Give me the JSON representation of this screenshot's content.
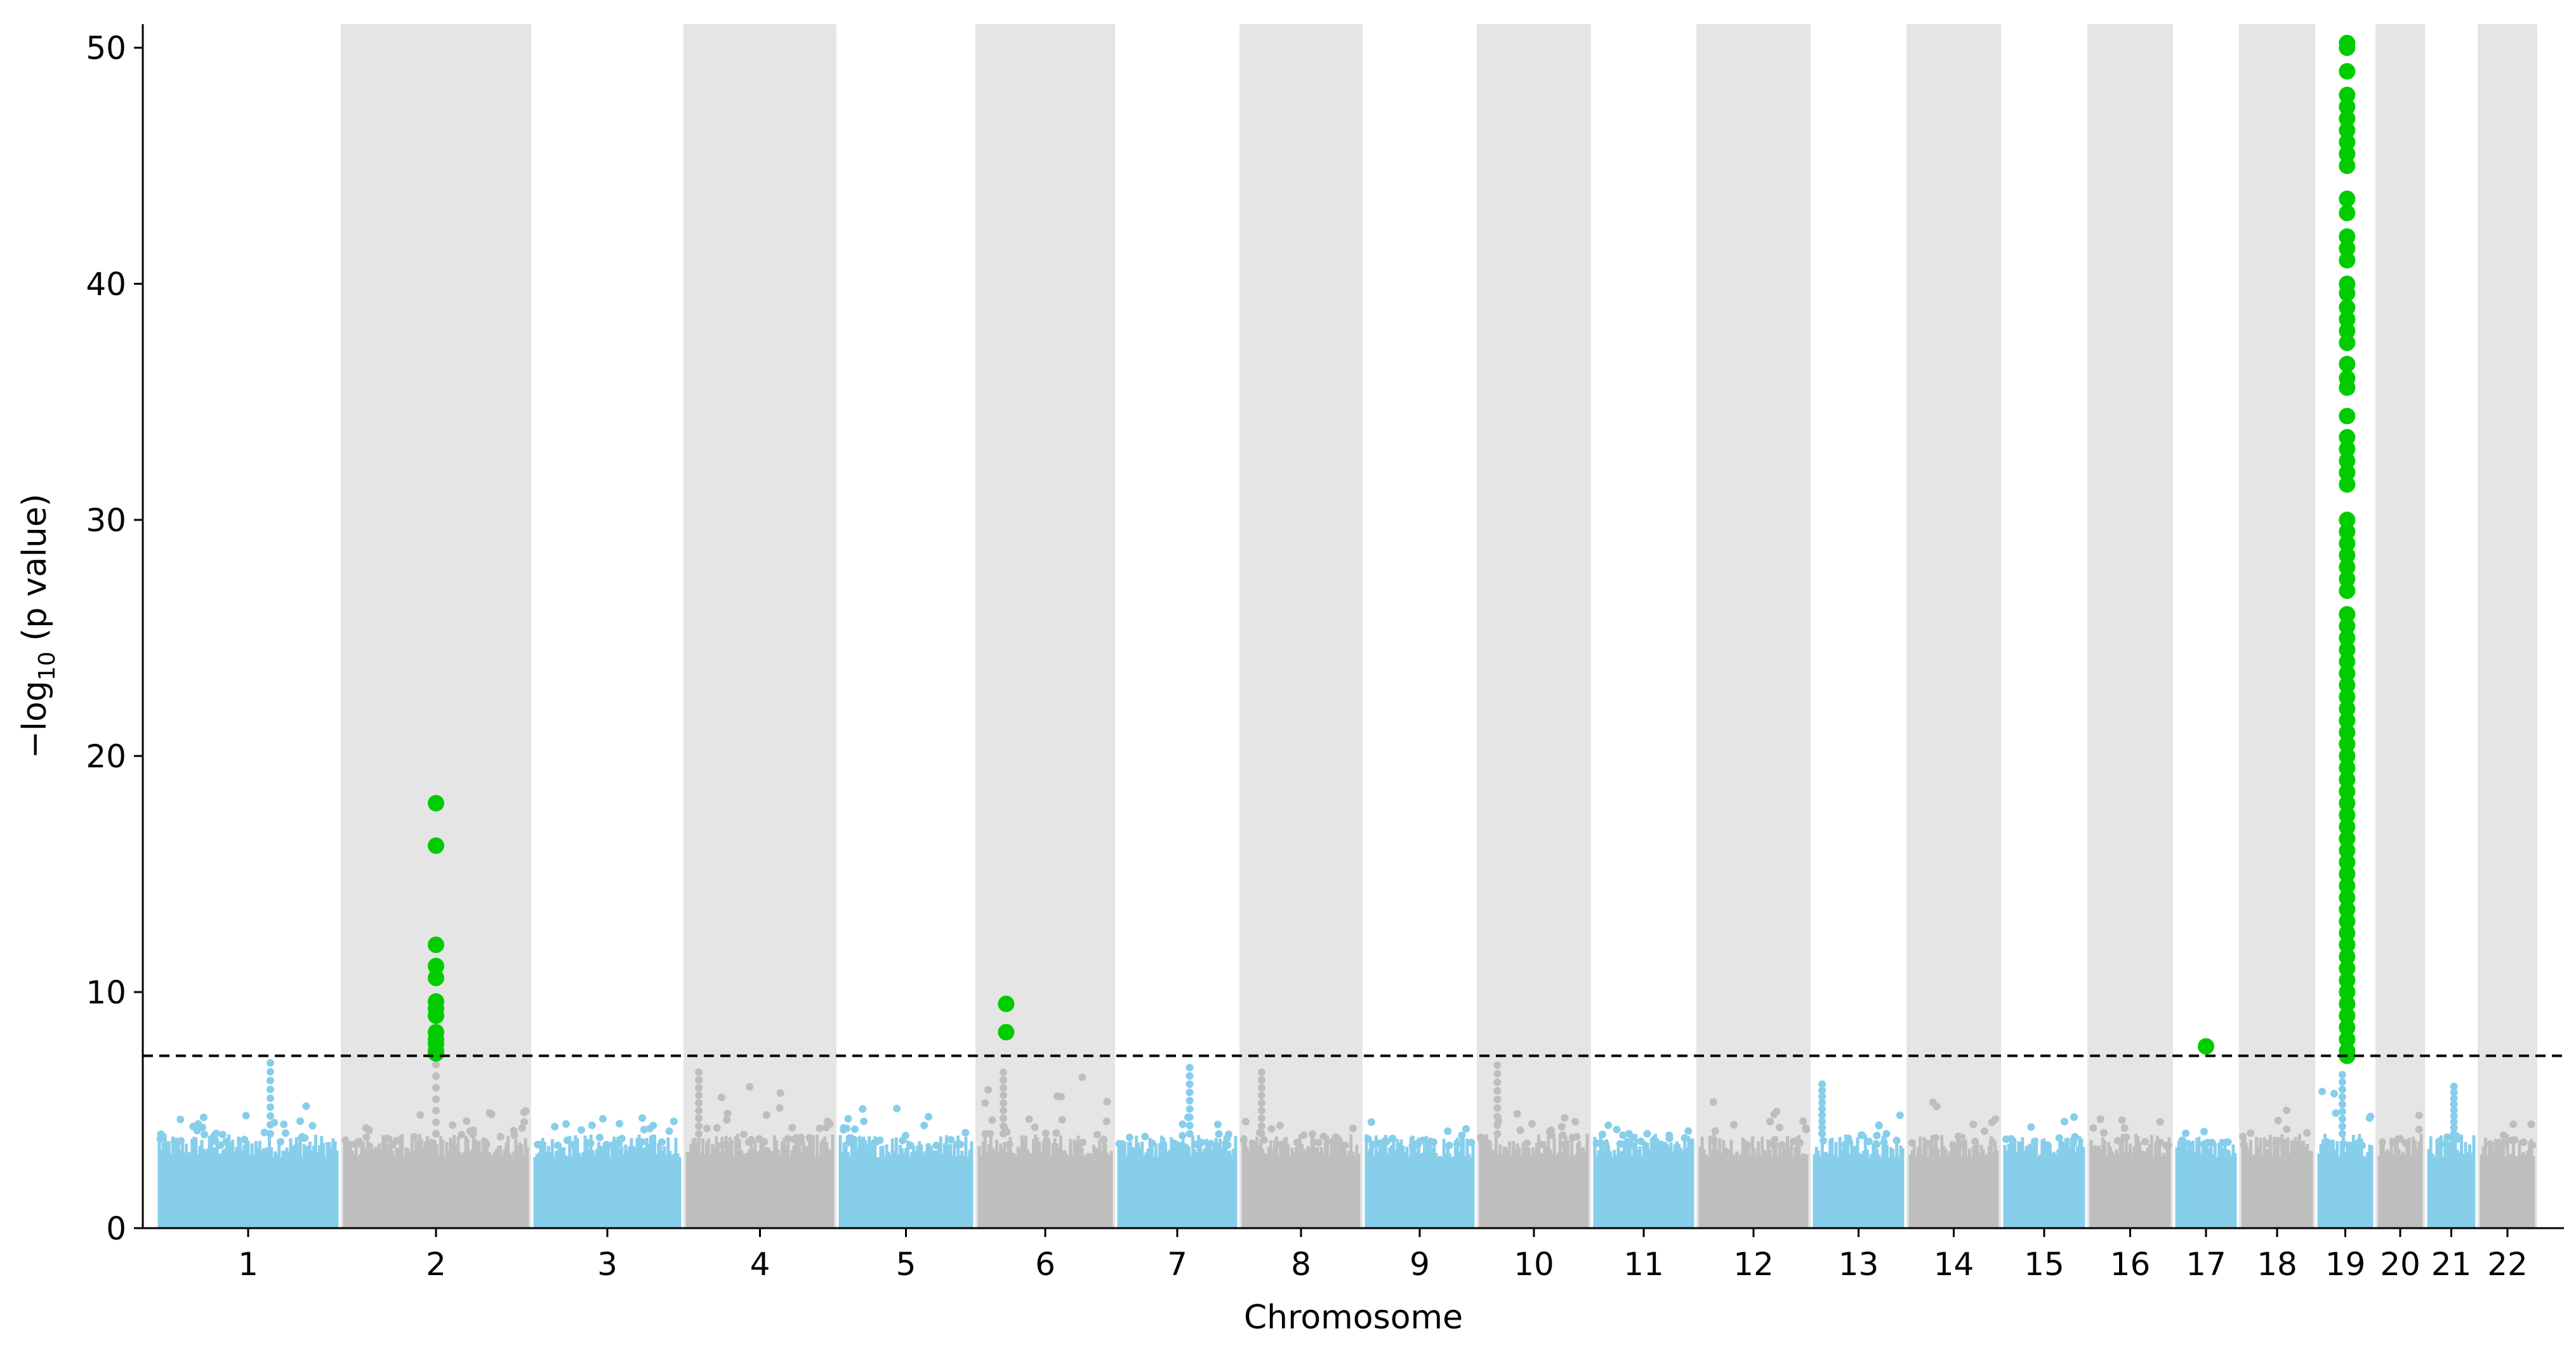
{
  "chart_data": {
    "type": "scatter",
    "subtype": "manhattan",
    "xlabel": "Chromosome",
    "ylabel_prefix": "−log",
    "ylabel_subscript": "10",
    "ylabel_suffix": " (p value)",
    "ylim": [
      0,
      51
    ],
    "yticks": [
      0,
      10,
      20,
      30,
      40,
      50
    ],
    "threshold": 7.3,
    "threshold_style": "dashed",
    "colors": {
      "odd": "#87ceeb",
      "even": "#bebebe",
      "significant": "#00cc00",
      "band": "#e5e5e5",
      "threshold": "#000000"
    },
    "chromosomes": [
      {
        "label": "1",
        "baseline_max": 5.6,
        "peaks": [
          {
            "pos": 0.62,
            "y": 7.0
          }
        ]
      },
      {
        "label": "2",
        "baseline_max": 5.8,
        "peaks": [
          {
            "pos": 0.5,
            "y": 7.9
          }
        ],
        "significant": [
          {
            "pos": 0.5,
            "values": [
              18.0,
              16.2,
              12.0,
              11.1,
              10.6,
              9.6,
              9.3,
              9.0,
              8.3,
              8.0,
              7.8,
              7.5,
              7.4
            ]
          }
        ]
      },
      {
        "label": "3",
        "baseline_max": 6.0,
        "peaks": []
      },
      {
        "label": "4",
        "baseline_max": 6.6,
        "peaks": [
          {
            "pos": 0.1,
            "y": 6.6
          }
        ]
      },
      {
        "label": "5",
        "baseline_max": 6.0,
        "peaks": []
      },
      {
        "label": "6",
        "baseline_max": 6.6,
        "peaks": [
          {
            "pos": 0.2,
            "y": 6.6
          }
        ],
        "significant": [
          {
            "pos": 0.22,
            "values": [
              9.5,
              8.3
            ]
          }
        ]
      },
      {
        "label": "7",
        "baseline_max": 5.2,
        "peaks": [
          {
            "pos": 0.6,
            "y": 6.8
          }
        ]
      },
      {
        "label": "8",
        "baseline_max": 5.3,
        "peaks": [
          {
            "pos": 0.18,
            "y": 6.6
          }
        ]
      },
      {
        "label": "9",
        "baseline_max": 4.7,
        "peaks": []
      },
      {
        "label": "10",
        "baseline_max": 5.4,
        "peaks": [
          {
            "pos": 0.18,
            "y": 6.9
          }
        ]
      },
      {
        "label": "11",
        "baseline_max": 5.4,
        "peaks": []
      },
      {
        "label": "12",
        "baseline_max": 5.8,
        "peaks": []
      },
      {
        "label": "13",
        "baseline_max": 5.1,
        "peaks": [
          {
            "pos": 0.12,
            "y": 6.1
          }
        ]
      },
      {
        "label": "14",
        "baseline_max": 5.8,
        "peaks": []
      },
      {
        "label": "15",
        "baseline_max": 5.1,
        "peaks": []
      },
      {
        "label": "16",
        "baseline_max": 5.2,
        "peaks": []
      },
      {
        "label": "17",
        "baseline_max": 5.6,
        "peaks": [],
        "significant": [
          {
            "pos": 0.5,
            "values": [
              7.7
            ]
          }
        ]
      },
      {
        "label": "18",
        "baseline_max": 5.5,
        "peaks": []
      },
      {
        "label": "19",
        "baseline_max": 6.7,
        "peaks": [
          {
            "pos": 0.45,
            "y": 6.5
          }
        ],
        "significant": [
          {
            "pos": 0.53,
            "values": [
              50.2,
              50.0,
              49.0,
              48.0,
              47.5,
              47.0,
              46.5,
              46.0,
              45.5,
              45.0,
              43.6,
              43.0,
              42.0,
              41.5,
              41.0,
              40.0,
              39.6,
              39.0,
              38.5,
              38.0,
              37.5,
              36.6,
              36.0,
              35.6,
              34.4,
              33.5,
              33.0,
              32.5,
              32.0,
              31.5,
              30.0,
              29.5,
              29.0,
              28.5,
              28.0,
              27.5,
              27.0,
              26.0,
              25.5,
              25.0,
              24.5,
              24.0,
              23.5,
              23.0,
              22.5,
              22.0,
              21.5,
              21.0,
              20.5,
              20.0,
              19.5,
              19.0,
              18.5,
              18.0,
              17.5,
              17.0,
              16.5,
              16.0,
              15.5,
              15.0,
              14.5,
              14.0,
              13.5,
              13.0,
              12.5,
              12.0,
              11.5,
              11.0,
              10.5,
              10.0,
              9.5,
              9.0,
              8.5,
              8.0,
              7.5,
              7.3
            ]
          }
        ]
      },
      {
        "label": "20",
        "baseline_max": 5.0,
        "peaks": []
      },
      {
        "label": "21",
        "baseline_max": 4.7,
        "peaks": [
          {
            "pos": 0.55,
            "y": 6.0
          }
        ]
      },
      {
        "label": "22",
        "baseline_max": 4.9,
        "peaks": []
      }
    ]
  }
}
